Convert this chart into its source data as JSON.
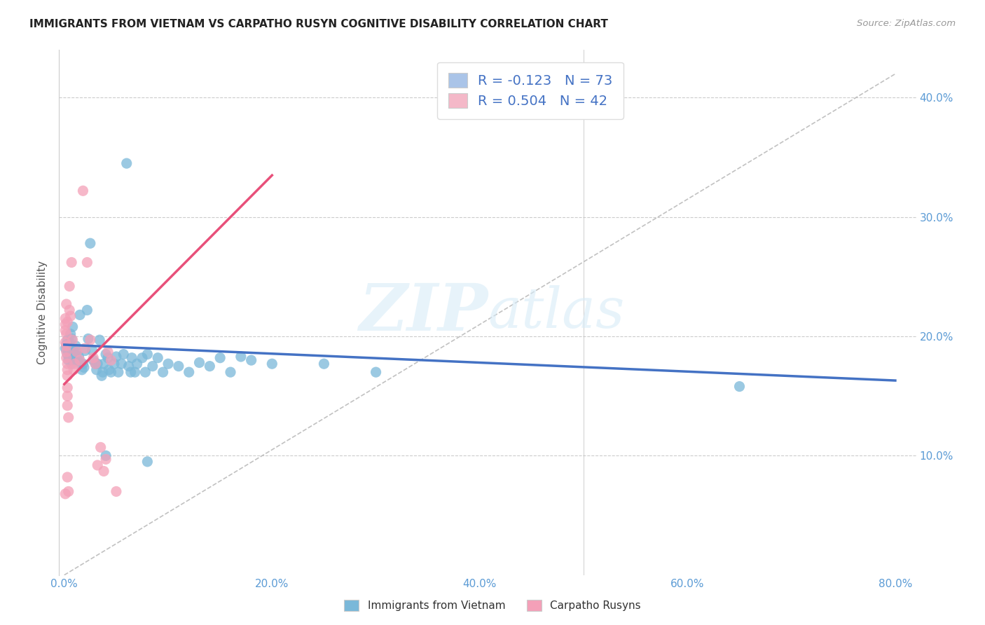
{
  "title": "IMMIGRANTS FROM VIETNAM VS CARPATHO RUSYN COGNITIVE DISABILITY CORRELATION CHART",
  "source": "Source: ZipAtlas.com",
  "xlim": [
    0.0,
    0.8
  ],
  "ylim": [
    0.0,
    0.42
  ],
  "watermark": "ZIPatlas",
  "legend_items": [
    {
      "label": "R = -0.123   N = 73",
      "color": "#aac4e8"
    },
    {
      "label": "R = 0.504   N = 42",
      "color": "#f4b8c8"
    }
  ],
  "legend_labels": [
    "Immigrants from Vietnam",
    "Carpatho Rusyns"
  ],
  "blue_color": "#7ab8d9",
  "pink_color": "#f4a0b8",
  "blue_line_color": "#4472c4",
  "pink_line_color": "#e8507a",
  "dashed_line_color": "#bbbbbb",
  "blue_line": {
    "x0": 0.0,
    "y0": 0.193,
    "x1": 0.8,
    "y1": 0.163
  },
  "pink_line": {
    "x0": 0.0,
    "y0": 0.16,
    "x1": 0.2,
    "y1": 0.335
  },
  "vietnam_points": [
    [
      0.001,
      0.19
    ],
    [
      0.002,
      0.193
    ],
    [
      0.003,
      0.185
    ],
    [
      0.003,
      0.197
    ],
    [
      0.004,
      0.188
    ],
    [
      0.004,
      0.18
    ],
    [
      0.005,
      0.182
    ],
    [
      0.005,
      0.195
    ],
    [
      0.006,
      0.19
    ],
    [
      0.006,
      0.202
    ],
    [
      0.007,
      0.177
    ],
    [
      0.007,
      0.198
    ],
    [
      0.008,
      0.208
    ],
    [
      0.009,
      0.188
    ],
    [
      0.01,
      0.185
    ],
    [
      0.01,
      0.18
    ],
    [
      0.011,
      0.192
    ],
    [
      0.012,
      0.187
    ],
    [
      0.013,
      0.18
    ],
    [
      0.014,
      0.183
    ],
    [
      0.015,
      0.218
    ],
    [
      0.016,
      0.177
    ],
    [
      0.017,
      0.172
    ],
    [
      0.018,
      0.177
    ],
    [
      0.019,
      0.174
    ],
    [
      0.02,
      0.188
    ],
    [
      0.022,
      0.222
    ],
    [
      0.023,
      0.198
    ],
    [
      0.025,
      0.278
    ],
    [
      0.027,
      0.188
    ],
    [
      0.028,
      0.18
    ],
    [
      0.03,
      0.177
    ],
    [
      0.031,
      0.172
    ],
    [
      0.032,
      0.177
    ],
    [
      0.034,
      0.197
    ],
    [
      0.036,
      0.167
    ],
    [
      0.037,
      0.17
    ],
    [
      0.038,
      0.177
    ],
    [
      0.04,
      0.185
    ],
    [
      0.042,
      0.182
    ],
    [
      0.043,
      0.172
    ],
    [
      0.045,
      0.17
    ],
    [
      0.048,
      0.177
    ],
    [
      0.05,
      0.183
    ],
    [
      0.052,
      0.17
    ],
    [
      0.055,
      0.177
    ],
    [
      0.057,
      0.185
    ],
    [
      0.06,
      0.345
    ],
    [
      0.062,
      0.175
    ],
    [
      0.064,
      0.17
    ],
    [
      0.065,
      0.182
    ],
    [
      0.068,
      0.17
    ],
    [
      0.07,
      0.177
    ],
    [
      0.075,
      0.182
    ],
    [
      0.078,
      0.17
    ],
    [
      0.08,
      0.185
    ],
    [
      0.085,
      0.175
    ],
    [
      0.09,
      0.182
    ],
    [
      0.095,
      0.17
    ],
    [
      0.1,
      0.177
    ],
    [
      0.11,
      0.175
    ],
    [
      0.12,
      0.17
    ],
    [
      0.13,
      0.178
    ],
    [
      0.14,
      0.175
    ],
    [
      0.15,
      0.182
    ],
    [
      0.16,
      0.17
    ],
    [
      0.17,
      0.183
    ],
    [
      0.18,
      0.18
    ],
    [
      0.2,
      0.177
    ],
    [
      0.25,
      0.177
    ],
    [
      0.3,
      0.17
    ],
    [
      0.04,
      0.1
    ],
    [
      0.08,
      0.095
    ],
    [
      0.65,
      0.158
    ]
  ],
  "rusyn_points": [
    [
      0.001,
      0.195
    ],
    [
      0.001,
      0.215
    ],
    [
      0.001,
      0.21
    ],
    [
      0.001,
      0.205
    ],
    [
      0.002,
      0.227
    ],
    [
      0.002,
      0.202
    ],
    [
      0.002,
      0.192
    ],
    [
      0.002,
      0.187
    ],
    [
      0.002,
      0.182
    ],
    [
      0.003,
      0.212
    ],
    [
      0.003,
      0.177
    ],
    [
      0.003,
      0.172
    ],
    [
      0.003,
      0.167
    ],
    [
      0.003,
      0.157
    ],
    [
      0.003,
      0.15
    ],
    [
      0.003,
      0.142
    ],
    [
      0.003,
      0.082
    ],
    [
      0.004,
      0.132
    ],
    [
      0.004,
      0.07
    ],
    [
      0.005,
      0.242
    ],
    [
      0.005,
      0.222
    ],
    [
      0.006,
      0.217
    ],
    [
      0.007,
      0.262
    ],
    [
      0.008,
      0.197
    ],
    [
      0.009,
      0.172
    ],
    [
      0.01,
      0.177
    ],
    [
      0.012,
      0.187
    ],
    [
      0.015,
      0.18
    ],
    [
      0.018,
      0.322
    ],
    [
      0.02,
      0.19
    ],
    [
      0.022,
      0.262
    ],
    [
      0.025,
      0.197
    ],
    [
      0.028,
      0.182
    ],
    [
      0.03,
      0.177
    ],
    [
      0.032,
      0.092
    ],
    [
      0.035,
      0.107
    ],
    [
      0.038,
      0.087
    ],
    [
      0.04,
      0.097
    ],
    [
      0.042,
      0.187
    ],
    [
      0.045,
      0.18
    ],
    [
      0.05,
      0.07
    ],
    [
      0.001,
      0.068
    ]
  ]
}
